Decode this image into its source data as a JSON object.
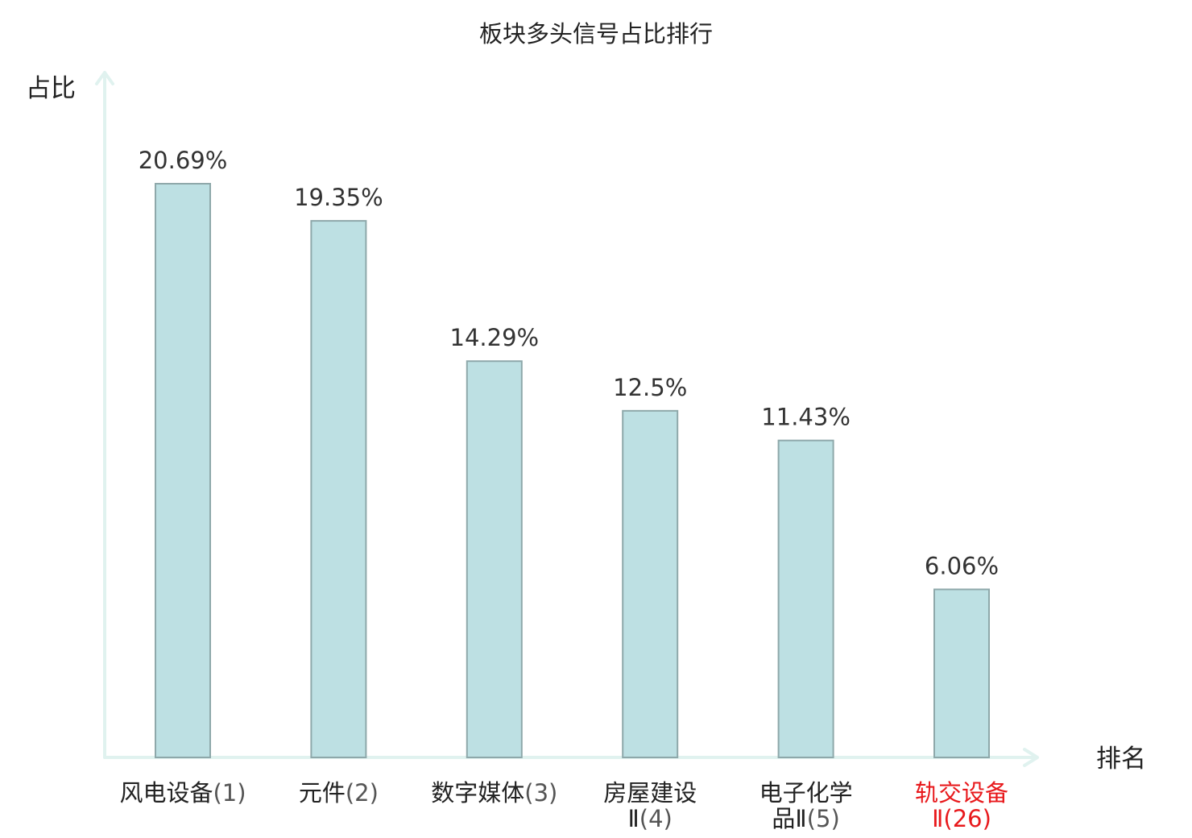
{
  "chart_data": {
    "type": "bar",
    "title": "板块多头信号占比排行",
    "ylabel": "占比",
    "xlabel": "排名",
    "ylim": [
      0,
      24.7
    ],
    "grid": false,
    "legend": "none",
    "categories": [
      {
        "name": "风电设备",
        "rank": "(1)",
        "highlight": false
      },
      {
        "name": "元件",
        "rank": "(2)",
        "highlight": false
      },
      {
        "name": "数字媒体",
        "rank": "(3)",
        "highlight": false
      },
      {
        "name": "房屋建设",
        "line2": "Ⅱ",
        "rank": "(4)",
        "highlight": false
      },
      {
        "name": "电子化学",
        "line2": "品Ⅱ",
        "rank": "(5)",
        "highlight": false
      },
      {
        "name": "轨交设备",
        "line2": "Ⅱ",
        "rank": "(26)",
        "highlight": true
      }
    ],
    "values": [
      20.69,
      19.35,
      14.29,
      12.5,
      11.43,
      6.06
    ],
    "value_labels": [
      "20.69%",
      "19.35%",
      "14.29%",
      "12.5%",
      "11.43%",
      "6.06%"
    ],
    "colors": {
      "bar_fill": "#bde0e3",
      "bar_stroke": "#8ea8aa",
      "axis": "#e0f2ef",
      "highlight": "#e8191c"
    }
  }
}
